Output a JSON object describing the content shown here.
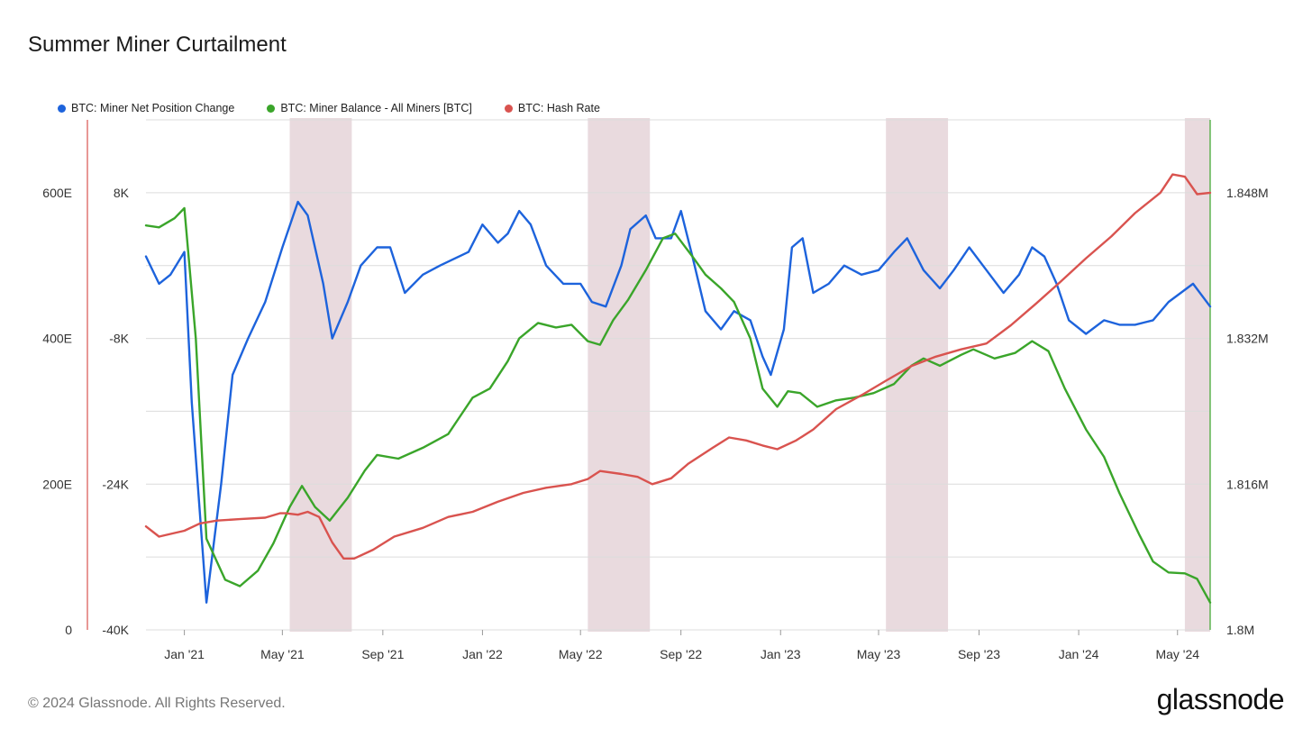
{
  "title": "Summer Miner Curtailment",
  "footer": "© 2024 Glassnode. All Rights Reserved.",
  "brand": "glassnode",
  "colors": {
    "blue": "#1d63dc",
    "green": "#3aa52a",
    "red": "#d9534f",
    "shade": "#e8d8dc"
  },
  "chart_data": {
    "type": "line",
    "title": "Summer Miner Curtailment",
    "legend_position": "top-left",
    "grid": true,
    "x_ticks": [
      "Jan '21",
      "May '21",
      "Sep '21",
      "Jan '22",
      "May '22",
      "Sep '22",
      "Jan '23",
      "May '23",
      "Sep '23",
      "Jan '24",
      "May '24"
    ],
    "x_range": [
      "2020-11-15",
      "2024-06-10"
    ],
    "y_left_hash_ticks": [
      "600E",
      "400E",
      "200E",
      "0"
    ],
    "y_left_hash_range": [
      0,
      700
    ],
    "y_left_npc_ticks": [
      "8K",
      "-8K",
      "-24K",
      "-40K"
    ],
    "y_left_npc_range": [
      -40000,
      16000
    ],
    "y_right_ticks": [
      "1.848M",
      "1.832M",
      "1.816M",
      "1.8M"
    ],
    "y_right_range": [
      1800000,
      1856000
    ],
    "shaded_ranges": [
      [
        "2021-05-10",
        "2021-07-25"
      ],
      [
        "2022-05-10",
        "2022-07-25"
      ],
      [
        "2023-05-10",
        "2023-07-25"
      ],
      [
        "2024-05-10",
        "2024-06-10"
      ]
    ],
    "series": [
      {
        "name": "BTC: Miner Net Position Change",
        "color": "#1d63dc",
        "axis": "left_npc",
        "points": [
          [
            "2020-11-15",
            1000
          ],
          [
            "2020-12-01",
            -2000
          ],
          [
            "2020-12-15",
            -1000
          ],
          [
            "2021-01-01",
            1500
          ],
          [
            "2021-01-10",
            -15000
          ],
          [
            "2021-01-28",
            -37000
          ],
          [
            "2021-02-15",
            -24000
          ],
          [
            "2021-03-01",
            -12000
          ],
          [
            "2021-03-20",
            -8000
          ],
          [
            "2021-04-10",
            -4000
          ],
          [
            "2021-05-01",
            2000
          ],
          [
            "2021-05-20",
            7000
          ],
          [
            "2021-06-01",
            5500
          ],
          [
            "2021-06-20",
            -2000
          ],
          [
            "2021-07-01",
            -8000
          ],
          [
            "2021-07-20",
            -4000
          ],
          [
            "2021-08-05",
            0
          ],
          [
            "2021-08-25",
            2000
          ],
          [
            "2021-09-10",
            2000
          ],
          [
            "2021-09-28",
            -3000
          ],
          [
            "2021-10-20",
            -1000
          ],
          [
            "2021-11-10",
            0
          ],
          [
            "2021-12-15",
            1500
          ],
          [
            "2022-01-01",
            4500
          ],
          [
            "2022-01-20",
            2500
          ],
          [
            "2022-02-01",
            3500
          ],
          [
            "2022-02-15",
            6000
          ],
          [
            "2022-03-01",
            4500
          ],
          [
            "2022-03-20",
            0
          ],
          [
            "2022-04-10",
            -2000
          ],
          [
            "2022-05-01",
            -2000
          ],
          [
            "2022-05-15",
            -4000
          ],
          [
            "2022-06-01",
            -4500
          ],
          [
            "2022-06-20",
            0
          ],
          [
            "2022-07-01",
            4000
          ],
          [
            "2022-07-20",
            5500
          ],
          [
            "2022-08-01",
            3000
          ],
          [
            "2022-08-20",
            3000
          ],
          [
            "2022-09-01",
            6000
          ],
          [
            "2022-09-15",
            1000
          ],
          [
            "2022-10-01",
            -5000
          ],
          [
            "2022-10-20",
            -7000
          ],
          [
            "2022-11-05",
            -5000
          ],
          [
            "2022-11-25",
            -6000
          ],
          [
            "2022-12-10",
            -10000
          ],
          [
            "2022-12-20",
            -12000
          ],
          [
            "2023-01-05",
            -7000
          ],
          [
            "2023-01-15",
            2000
          ],
          [
            "2023-01-28",
            3000
          ],
          [
            "2023-02-10",
            -3000
          ],
          [
            "2023-03-01",
            -2000
          ],
          [
            "2023-03-20",
            0
          ],
          [
            "2023-04-10",
            -1000
          ],
          [
            "2023-05-01",
            -500
          ],
          [
            "2023-05-20",
            1500
          ],
          [
            "2023-06-05",
            3000
          ],
          [
            "2023-06-25",
            -500
          ],
          [
            "2023-07-15",
            -2500
          ],
          [
            "2023-08-01",
            -500
          ],
          [
            "2023-08-20",
            2000
          ],
          [
            "2023-09-10",
            -500
          ],
          [
            "2023-10-01",
            -3000
          ],
          [
            "2023-10-20",
            -1000
          ],
          [
            "2023-11-05",
            2000
          ],
          [
            "2023-11-20",
            1000
          ],
          [
            "2023-12-05",
            -2000
          ],
          [
            "2023-12-20",
            -6000
          ],
          [
            "2024-01-10",
            -7500
          ],
          [
            "2024-02-01",
            -6000
          ],
          [
            "2024-02-20",
            -6500
          ],
          [
            "2024-03-10",
            -6500
          ],
          [
            "2024-04-01",
            -6000
          ],
          [
            "2024-04-20",
            -4000
          ],
          [
            "2024-05-05",
            -3000
          ],
          [
            "2024-05-20",
            -2000
          ],
          [
            "2024-06-10",
            -4500
          ]
        ]
      },
      {
        "name": "BTC: Miner Balance - All Miners [BTC]",
        "color": "#3aa52a",
        "axis": "right",
        "points": [
          [
            "2020-11-15",
            1844400
          ],
          [
            "2020-12-01",
            1844200
          ],
          [
            "2020-12-20",
            1845200
          ],
          [
            "2021-01-01",
            1846300
          ],
          [
            "2021-01-15",
            1832000
          ],
          [
            "2021-01-28",
            1810000
          ],
          [
            "2021-02-20",
            1805500
          ],
          [
            "2021-03-10",
            1804800
          ],
          [
            "2021-04-01",
            1806500
          ],
          [
            "2021-04-20",
            1809500
          ],
          [
            "2021-05-10",
            1813500
          ],
          [
            "2021-05-25",
            1815800
          ],
          [
            "2021-06-10",
            1813500
          ],
          [
            "2021-06-28",
            1812000
          ],
          [
            "2021-07-20",
            1814500
          ],
          [
            "2021-08-10",
            1817500
          ],
          [
            "2021-08-25",
            1819200
          ],
          [
            "2021-09-20",
            1818800
          ],
          [
            "2021-10-20",
            1820000
          ],
          [
            "2021-11-20",
            1821500
          ],
          [
            "2021-12-20",
            1825500
          ],
          [
            "2022-01-10",
            1826500
          ],
          [
            "2022-02-01",
            1829500
          ],
          [
            "2022-02-15",
            1832000
          ],
          [
            "2022-03-10",
            1833700
          ],
          [
            "2022-04-01",
            1833200
          ],
          [
            "2022-04-20",
            1833500
          ],
          [
            "2022-05-10",
            1831700
          ],
          [
            "2022-05-25",
            1831300
          ],
          [
            "2022-06-10",
            1834000
          ],
          [
            "2022-06-28",
            1836200
          ],
          [
            "2022-07-20",
            1839500
          ],
          [
            "2022-08-10",
            1843000
          ],
          [
            "2022-08-25",
            1843500
          ],
          [
            "2022-09-15",
            1841000
          ],
          [
            "2022-10-01",
            1839000
          ],
          [
            "2022-10-20",
            1837500
          ],
          [
            "2022-11-05",
            1836000
          ],
          [
            "2022-11-25",
            1832000
          ],
          [
            "2022-12-10",
            1826500
          ],
          [
            "2022-12-28",
            1824500
          ],
          [
            "2023-01-10",
            1826200
          ],
          [
            "2023-01-25",
            1826000
          ],
          [
            "2023-02-15",
            1824500
          ],
          [
            "2023-03-10",
            1825200
          ],
          [
            "2023-04-01",
            1825500
          ],
          [
            "2023-04-25",
            1826000
          ],
          [
            "2023-05-20",
            1827000
          ],
          [
            "2023-06-10",
            1829000
          ],
          [
            "2023-06-25",
            1829800
          ],
          [
            "2023-07-15",
            1829000
          ],
          [
            "2023-08-10",
            1830200
          ],
          [
            "2023-08-25",
            1830800
          ],
          [
            "2023-09-20",
            1829800
          ],
          [
            "2023-10-15",
            1830400
          ],
          [
            "2023-11-05",
            1831700
          ],
          [
            "2023-11-25",
            1830600
          ],
          [
            "2023-12-15",
            1826500
          ],
          [
            "2024-01-10",
            1822000
          ],
          [
            "2024-02-01",
            1819000
          ],
          [
            "2024-02-20",
            1815000
          ],
          [
            "2024-03-15",
            1810500
          ],
          [
            "2024-04-01",
            1807500
          ],
          [
            "2024-04-20",
            1806300
          ],
          [
            "2024-05-10",
            1806200
          ],
          [
            "2024-05-25",
            1805600
          ],
          [
            "2024-06-10",
            1803000
          ]
        ]
      },
      {
        "name": "BTC: Hash Rate",
        "color": "#d9534f",
        "axis": "left_hash",
        "points": [
          [
            "2020-11-15",
            142
          ],
          [
            "2020-12-01",
            128
          ],
          [
            "2020-12-20",
            133
          ],
          [
            "2021-01-01",
            136
          ],
          [
            "2021-01-20",
            146
          ],
          [
            "2021-02-10",
            150
          ],
          [
            "2021-03-10",
            152
          ],
          [
            "2021-04-10",
            154
          ],
          [
            "2021-04-28",
            160
          ],
          [
            "2021-05-05",
            160
          ],
          [
            "2021-05-20",
            158
          ],
          [
            "2021-06-01",
            162
          ],
          [
            "2021-06-15",
            155
          ],
          [
            "2021-07-01",
            120
          ],
          [
            "2021-07-15",
            98
          ],
          [
            "2021-07-28",
            98
          ],
          [
            "2021-08-20",
            110
          ],
          [
            "2021-09-15",
            128
          ],
          [
            "2021-10-20",
            140
          ],
          [
            "2021-11-20",
            155
          ],
          [
            "2021-12-20",
            162
          ],
          [
            "2022-01-20",
            176
          ],
          [
            "2022-02-20",
            188
          ],
          [
            "2022-03-20",
            195
          ],
          [
            "2022-04-20",
            200
          ],
          [
            "2022-05-10",
            207
          ],
          [
            "2022-05-25",
            218
          ],
          [
            "2022-06-20",
            214
          ],
          [
            "2022-07-10",
            210
          ],
          [
            "2022-07-28",
            200
          ],
          [
            "2022-08-20",
            208
          ],
          [
            "2022-09-10",
            228
          ],
          [
            "2022-10-10",
            250
          ],
          [
            "2022-10-30",
            264
          ],
          [
            "2022-11-20",
            260
          ],
          [
            "2022-12-10",
            253
          ],
          [
            "2022-12-28",
            248
          ],
          [
            "2023-01-20",
            260
          ],
          [
            "2023-02-10",
            275
          ],
          [
            "2023-03-10",
            303
          ],
          [
            "2023-04-10",
            322
          ],
          [
            "2023-05-10",
            342
          ],
          [
            "2023-06-10",
            362
          ],
          [
            "2023-07-10",
            375
          ],
          [
            "2023-08-10",
            385
          ],
          [
            "2023-09-10",
            393
          ],
          [
            "2023-10-10",
            418
          ],
          [
            "2023-11-10",
            448
          ],
          [
            "2023-12-10",
            478
          ],
          [
            "2024-01-10",
            510
          ],
          [
            "2024-02-10",
            540
          ],
          [
            "2024-03-10",
            572
          ],
          [
            "2024-04-10",
            600
          ],
          [
            "2024-04-25",
            625
          ],
          [
            "2024-05-10",
            622
          ],
          [
            "2024-05-25",
            598
          ],
          [
            "2024-06-10",
            600
          ]
        ]
      }
    ]
  }
}
